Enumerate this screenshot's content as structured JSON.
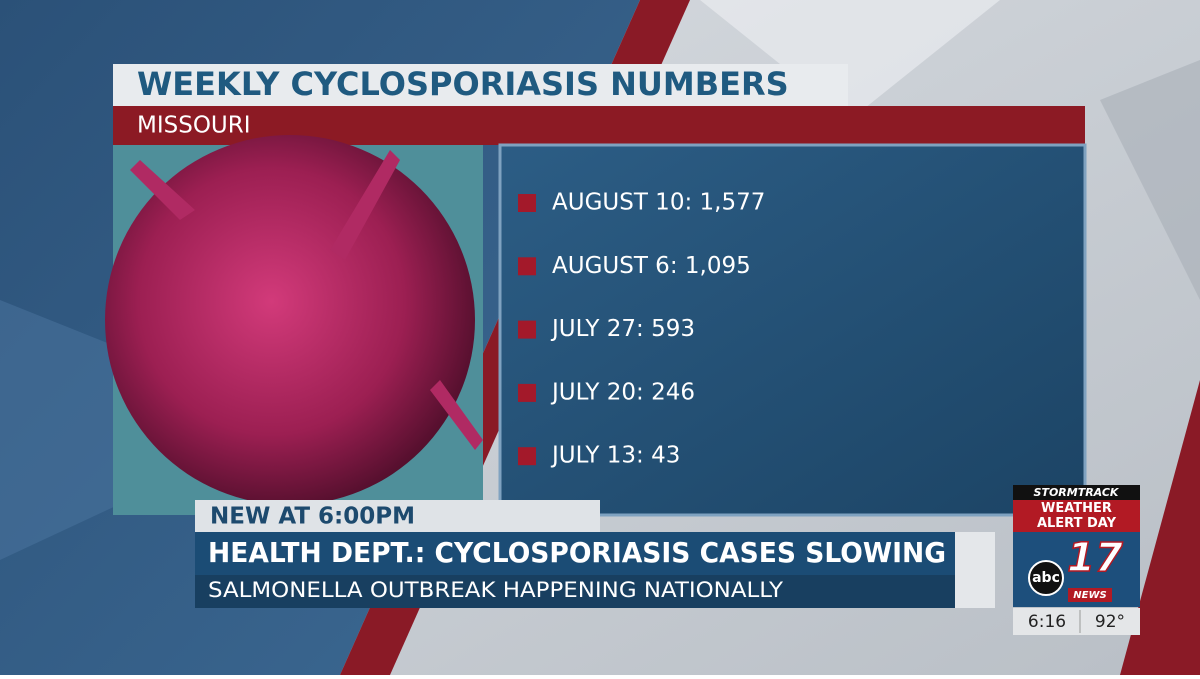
{
  "header": {
    "title": "WEEKLY CYCLOSPORIASIS NUMBERS",
    "subtitle": "MISSOURI"
  },
  "list": {
    "items": [
      "AUGUST 10: 1,577",
      "AUGUST 6: 1,095",
      "JULY 27: 593",
      "JULY 20: 246",
      "JULY 13: 43"
    ]
  },
  "lower_third": {
    "tag": "NEW AT 6:00PM",
    "headline": "HEALTH DEPT.: CYCLOSPORIASIS CASES SLOWING",
    "subhead": "SALMONELLA OUTBREAK HAPPENING NATIONALLY"
  },
  "bug": {
    "brand": "STORMTRACK",
    "alert": "WEATHER ALERT DAY",
    "network": "abc",
    "channel": "17",
    "station": "NEWS",
    "time": "6:16",
    "temperature": "92°"
  }
}
